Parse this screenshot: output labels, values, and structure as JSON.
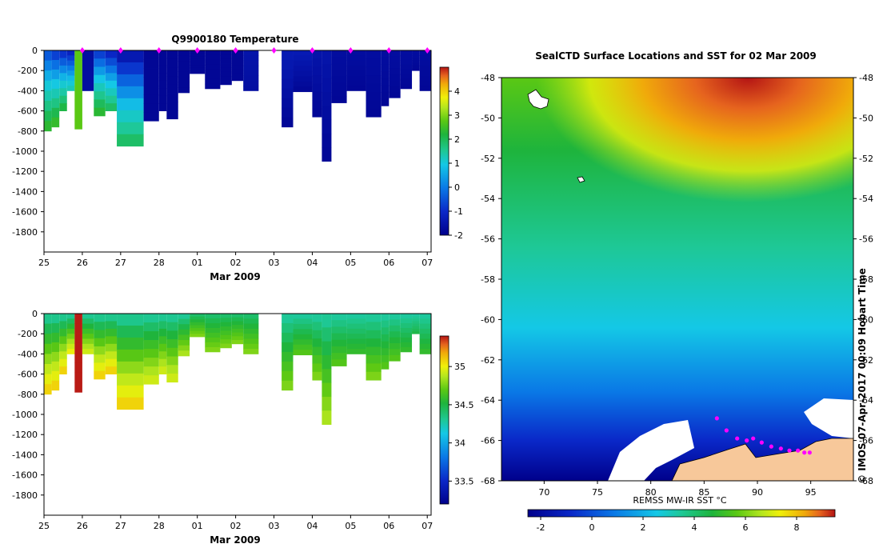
{
  "colors": {
    "ocean_stops": [
      "#00008b",
      "#0a28c8",
      "#0a78e6",
      "#14c8e6",
      "#1ec896",
      "#1eb43c",
      "#5ac814",
      "#b4e61e",
      "#f0f00a",
      "#f0aa0a",
      "#e6641e",
      "#b41414",
      "#8c0a0a"
    ],
    "land": "#f7c89a",
    "ice": "#ffffff",
    "track_marker": "#ff00ff"
  },
  "chart_data": [
    {
      "type": "heatmap",
      "title": "Q9900180  Temperature",
      "xlabel": "Mar 2009",
      "x_ticks": [
        "25",
        "26",
        "27",
        "28",
        "01",
        "02",
        "03",
        "04",
        "05",
        "06",
        "07"
      ],
      "y_ticks": [
        "0",
        "-200",
        "-400",
        "-600",
        "-800",
        "-1000",
        "-1200",
        "-1400",
        "-1600",
        "-1800"
      ],
      "ylim": [
        -2000,
        0
      ],
      "xlim": [
        25,
        35.1
      ],
      "colorbar": {
        "min": -2,
        "max": 5,
        "ticks": [
          "4",
          "3",
          "2",
          "1",
          "0",
          "-1",
          "-2"
        ]
      },
      "profile_markers_day": [
        26,
        27,
        28,
        29,
        30,
        31,
        32,
        33,
        34,
        35
      ],
      "profiles": [
        {
          "x0": 25.0,
          "x1": 25.2,
          "depth": -800,
          "surface": -1.2,
          "deep": 1.2
        },
        {
          "x0": 25.2,
          "x1": 25.4,
          "depth": -760,
          "surface": -1.4,
          "deep": 1.3
        },
        {
          "x0": 25.4,
          "x1": 25.6,
          "depth": -600,
          "surface": -1.5,
          "deep": 1.0
        },
        {
          "x0": 25.6,
          "x1": 25.8,
          "depth": -400,
          "surface": -1.6,
          "deep": 0.2
        },
        {
          "x0": 25.8,
          "x1": 26.0,
          "depth": -780,
          "surface": 1.5,
          "deep": 1.5
        },
        {
          "x0": 26.0,
          "x1": 26.3,
          "depth": -400,
          "surface": -1.8,
          "deep": -1.8
        },
        {
          "x0": 26.3,
          "x1": 26.6,
          "depth": -650,
          "surface": -1.4,
          "deep": 1.2
        },
        {
          "x0": 26.6,
          "x1": 26.9,
          "depth": -600,
          "surface": -1.6,
          "deep": 0.8
        },
        {
          "x0": 26.9,
          "x1": 27.6,
          "depth": -950,
          "surface": -1.8,
          "deep": 0.8
        },
        {
          "x0": 27.6,
          "x1": 28.0,
          "depth": -700,
          "surface": -1.9,
          "deep": -1.9
        },
        {
          "x0": 28.0,
          "x1": 28.2,
          "depth": -600,
          "surface": -1.9,
          "deep": -1.9
        },
        {
          "x0": 28.2,
          "x1": 28.5,
          "depth": -680,
          "surface": -1.9,
          "deep": -1.9
        },
        {
          "x0": 28.5,
          "x1": 28.8,
          "depth": -420,
          "surface": -1.9,
          "deep": -1.9
        },
        {
          "x0": 28.8,
          "x1": 29.2,
          "depth": -230,
          "surface": -1.9,
          "deep": -1.9
        },
        {
          "x0": 29.2,
          "x1": 29.6,
          "depth": -380,
          "surface": -1.9,
          "deep": -1.9
        },
        {
          "x0": 29.6,
          "x1": 29.9,
          "depth": -340,
          "surface": -1.9,
          "deep": -1.9
        },
        {
          "x0": 29.9,
          "x1": 30.2,
          "depth": -300,
          "surface": -1.9,
          "deep": -1.9
        },
        {
          "x0": 30.2,
          "x1": 30.6,
          "depth": -400,
          "surface": -1.7,
          "deep": -1.8
        },
        {
          "x0": 31.2,
          "x1": 31.5,
          "depth": -760,
          "surface": -1.6,
          "deep": -1.9
        },
        {
          "x0": 31.5,
          "x1": 32.0,
          "depth": -410,
          "surface": -1.6,
          "deep": -1.9
        },
        {
          "x0": 32.0,
          "x1": 32.25,
          "depth": -660,
          "surface": -1.7,
          "deep": -1.9
        },
        {
          "x0": 32.25,
          "x1": 32.5,
          "depth": -1100,
          "surface": -1.7,
          "deep": -1.9
        },
        {
          "x0": 32.5,
          "x1": 32.9,
          "depth": -520,
          "surface": -1.8,
          "deep": -1.9
        },
        {
          "x0": 32.9,
          "x1": 33.4,
          "depth": -400,
          "surface": -1.8,
          "deep": -1.9
        },
        {
          "x0": 33.4,
          "x1": 33.8,
          "depth": -660,
          "surface": -1.8,
          "deep": -1.9
        },
        {
          "x0": 33.8,
          "x1": 34.0,
          "depth": -550,
          "surface": -1.8,
          "deep": -1.9
        },
        {
          "x0": 34.0,
          "x1": 34.3,
          "depth": -470,
          "surface": -1.8,
          "deep": -1.9
        },
        {
          "x0": 34.3,
          "x1": 34.6,
          "depth": -380,
          "surface": -1.8,
          "deep": -1.9
        },
        {
          "x0": 34.6,
          "x1": 34.8,
          "depth": -200,
          "surface": -1.8,
          "deep": -1.9
        },
        {
          "x0": 34.8,
          "x1": 35.1,
          "depth": -400,
          "surface": -1.8,
          "deep": -1.9
        }
      ]
    },
    {
      "type": "heatmap",
      "title": "",
      "xlabel": "Mar 2009",
      "x_ticks": [
        "25",
        "26",
        "27",
        "28",
        "01",
        "02",
        "03",
        "04",
        "05",
        "06",
        "07"
      ],
      "y_ticks": [
        "0",
        "-200",
        "-400",
        "-600",
        "-800",
        "-1000",
        "-1200",
        "-1400",
        "-1600",
        "-1800"
      ],
      "ylim": [
        -2000,
        0
      ],
      "xlim": [
        25,
        35.1
      ],
      "colorbar": {
        "min": 33.2,
        "max": 35.4,
        "ticks": [
          "35",
          "34.5",
          "34",
          "33.5"
        ]
      },
      "profiles": [
        {
          "x0": 25.0,
          "x1": 25.2,
          "depth": -800,
          "surface": 33.9,
          "deep": 34.8
        },
        {
          "x0": 25.2,
          "x1": 25.4,
          "depth": -760,
          "surface": 33.9,
          "deep": 34.8
        },
        {
          "x0": 25.4,
          "x1": 25.6,
          "depth": -600,
          "surface": 33.9,
          "deep": 34.8
        },
        {
          "x0": 25.6,
          "x1": 25.8,
          "depth": -400,
          "surface": 33.9,
          "deep": 34.7
        },
        {
          "x0": 25.8,
          "x1": 26.0,
          "depth": -780,
          "surface": 35.2,
          "deep": 35.2
        },
        {
          "x0": 26.0,
          "x1": 26.3,
          "depth": -400,
          "surface": 33.9,
          "deep": 34.6
        },
        {
          "x0": 26.3,
          "x1": 26.6,
          "depth": -650,
          "surface": 33.9,
          "deep": 34.8
        },
        {
          "x0": 26.6,
          "x1": 26.9,
          "depth": -600,
          "surface": 33.9,
          "deep": 34.8
        },
        {
          "x0": 26.9,
          "x1": 27.6,
          "depth": -950,
          "surface": 33.9,
          "deep": 34.8
        },
        {
          "x0": 27.6,
          "x1": 28.0,
          "depth": -700,
          "surface": 33.9,
          "deep": 34.6
        },
        {
          "x0": 28.0,
          "x1": 28.2,
          "depth": -600,
          "surface": 33.9,
          "deep": 34.6
        },
        {
          "x0": 28.2,
          "x1": 28.5,
          "depth": -680,
          "surface": 33.9,
          "deep": 34.6
        },
        {
          "x0": 28.5,
          "x1": 28.8,
          "depth": -420,
          "surface": 33.9,
          "deep": 34.5
        },
        {
          "x0": 28.8,
          "x1": 29.2,
          "depth": -230,
          "surface": 34.0,
          "deep": 34.4
        },
        {
          "x0": 29.2,
          "x1": 29.6,
          "depth": -380,
          "surface": 34.0,
          "deep": 34.4
        },
        {
          "x0": 29.6,
          "x1": 29.9,
          "depth": -340,
          "surface": 34.0,
          "deep": 34.4
        },
        {
          "x0": 29.9,
          "x1": 30.2,
          "depth": -300,
          "surface": 34.0,
          "deep": 34.4
        },
        {
          "x0": 30.2,
          "x1": 30.6,
          "depth": -400,
          "surface": 34.0,
          "deep": 34.4
        },
        {
          "x0": 31.2,
          "x1": 31.5,
          "depth": -760,
          "surface": 33.9,
          "deep": 34.4
        },
        {
          "x0": 31.5,
          "x1": 32.0,
          "depth": -410,
          "surface": 33.9,
          "deep": 34.3
        },
        {
          "x0": 32.0,
          "x1": 32.25,
          "depth": -660,
          "surface": 33.9,
          "deep": 34.4
        },
        {
          "x0": 32.25,
          "x1": 32.5,
          "depth": -1100,
          "surface": 33.9,
          "deep": 34.5
        },
        {
          "x0": 32.5,
          "x1": 32.9,
          "depth": -520,
          "surface": 33.9,
          "deep": 34.3
        },
        {
          "x0": 32.9,
          "x1": 33.4,
          "depth": -400,
          "surface": 33.9,
          "deep": 34.2
        },
        {
          "x0": 33.4,
          "x1": 33.8,
          "depth": -660,
          "surface": 33.9,
          "deep": 34.4
        },
        {
          "x0": 33.8,
          "x1": 34.0,
          "depth": -550,
          "surface": 33.9,
          "deep": 34.3
        },
        {
          "x0": 34.0,
          "x1": 34.3,
          "depth": -470,
          "surface": 33.9,
          "deep": 34.3
        },
        {
          "x0": 34.3,
          "x1": 34.6,
          "depth": -380,
          "surface": 33.9,
          "deep": 34.2
        },
        {
          "x0": 34.6,
          "x1": 34.8,
          "depth": -200,
          "surface": 33.9,
          "deep": 34.1
        },
        {
          "x0": 34.8,
          "x1": 35.1,
          "depth": -400,
          "surface": 33.9,
          "deep": 34.2
        }
      ]
    },
    {
      "type": "heatmap",
      "title": "SealCTD Surface Locations and SST for 02 Mar 2009",
      "xlabel": "REMSS MW-IR SST °C",
      "x_ticks": [
        "70",
        "75",
        "80",
        "85",
        "90",
        "95"
      ],
      "x_tick_values": [
        70,
        75,
        80,
        85,
        90,
        95
      ],
      "y_ticks": [
        "-48",
        "-50",
        "-52",
        "-54",
        "-56",
        "-58",
        "-60",
        "-62",
        "-64",
        "-66",
        "-68"
      ],
      "y_tick_values": [
        -48,
        -50,
        -52,
        -54,
        -56,
        -58,
        -60,
        -62,
        -64,
        -66,
        -68
      ],
      "xlim": [
        66,
        99
      ],
      "ylim": [
        -68,
        -48
      ],
      "colorbar": {
        "min": -2.5,
        "max": 9.5,
        "ticks": [
          "-2",
          "0",
          "2",
          "4",
          "6",
          "8"
        ],
        "tick_values": [
          -2,
          0,
          2,
          4,
          6,
          8
        ]
      },
      "seal_locations": [
        {
          "lon": 86.2,
          "lat": -64.9
        },
        {
          "lon": 87.1,
          "lat": -65.5
        },
        {
          "lon": 88.1,
          "lat": -65.9
        },
        {
          "lon": 89.0,
          "lat": -66.0
        },
        {
          "lon": 89.6,
          "lat": -65.9
        },
        {
          "lon": 90.4,
          "lat": -66.1
        },
        {
          "lon": 91.3,
          "lat": -66.3
        },
        {
          "lon": 92.2,
          "lat": -66.4
        },
        {
          "lon": 93.0,
          "lat": -66.5
        },
        {
          "lon": 93.8,
          "lat": -66.5
        },
        {
          "lon": 94.4,
          "lat": -66.6
        },
        {
          "lon": 94.9,
          "lat": -66.6
        }
      ]
    }
  ],
  "credit": "© IMOS 07-Apr-2017 00:09 Hobart Time"
}
